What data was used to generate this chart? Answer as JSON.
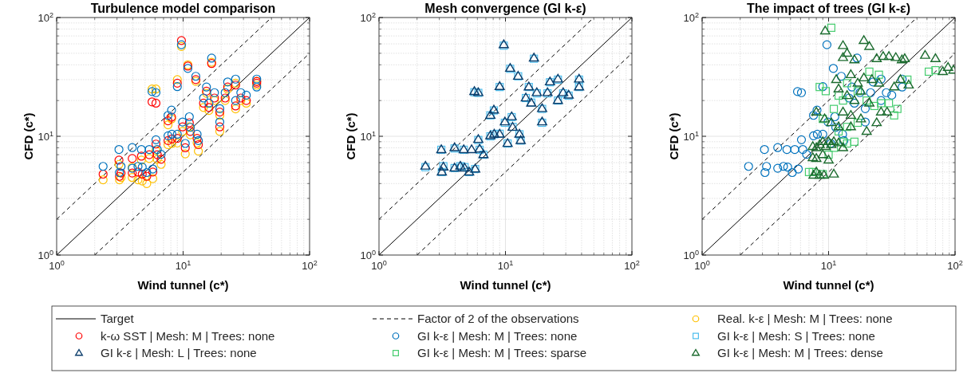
{
  "chart_data": [
    {
      "type": "scatter",
      "title": "Turbulence model comparison",
      "xlabel": "Wind tunnel (c*)",
      "ylabel": "CFD (c*)",
      "log": "xy",
      "grid": true,
      "legend": "bottom",
      "xlim": [
        1,
        100
      ],
      "ylim": [
        1,
        100
      ],
      "xticks": [
        {
          "value": 1,
          "label": "10$^{0}$"
        },
        {
          "value": 10,
          "label": "10$^{1}$"
        },
        {
          "value": 100,
          "label": "10$^{2}$"
        }
      ],
      "yticks": [
        {
          "value": 1,
          "label": "10$^{0}$"
        },
        {
          "value": 10,
          "label": "10$^{1}$"
        },
        {
          "value": 100,
          "label": "10$^{2}$"
        }
      ],
      "series": [
        {
          "type": "line",
          "name": "Target",
          "color": "#000000",
          "line_style": "solid",
          "marker": "none",
          "x": [
            1,
            100
          ],
          "values": [
            1,
            100
          ]
        },
        {
          "type": "line",
          "name": "Factor of 2 of the observations",
          "color": "#000000",
          "line_style": "dashed",
          "marker": "none",
          "x": [
            1,
            50
          ],
          "values": [
            2,
            100
          ]
        },
        {
          "type": "line",
          "color": "#000000",
          "line_style": "dashed",
          "marker": "none",
          "x": [
            2,
            100
          ],
          "values": [
            1,
            50
          ]
        },
        {
          "name": "Real. k-ε | Mesh: M | Trees: none",
          "color": "#ffc000",
          "marker": "circle",
          "x": [
            2.33,
            3.11,
            3.14,
            3.23,
            3.96,
            3.96,
            4.4,
            4.75,
            4.68,
            5.4,
            5.16,
            5.76,
            6.1,
            6.25,
            5.68,
            6.1,
            6.7,
            7.6,
            8.1,
            7.6,
            8.15,
            9.0,
            9.7,
            9.0,
            10.9,
            12.6,
            16.8,
            9.9,
            11.4,
            12.9,
            14.5,
            16,
            17.7,
            19.5,
            22.5,
            26,
            28.6,
            31.6,
            38.2,
            38.2,
            19.5,
            13.2,
            10.4,
            11.2,
            15.3,
            21.5,
            26
          ],
          "values": [
            4.3,
            5.8,
            4.3,
            4.5,
            5.5,
            4.5,
            4.3,
            4.2,
            6.3,
            6.5,
            4.0,
            4.4,
            7.6,
            6.4,
            25,
            25,
            5.8,
            12.5,
            14,
            8.5,
            8.7,
            8.8,
            57,
            30,
            40,
            29,
            42,
            11,
            10.3,
            8.8,
            17.5,
            16.5,
            20,
            15,
            25,
            28,
            20,
            19,
            27,
            29,
            11,
            7.5,
            7.1,
            12,
            23,
            20,
            17
          ]
        },
        {
          "name": "k-ω SST | Mesh: M | Trees: none",
          "color": "#ff0000",
          "marker": "circle",
          "x": [
            2.33,
            3.11,
            3.14,
            3.23,
            3.96,
            3.96,
            4.4,
            4.75,
            4.68,
            5.4,
            5.16,
            5.76,
            6.1,
            6.25,
            5.68,
            6.1,
            6.7,
            7.6,
            8.1,
            7.6,
            8.15,
            9.0,
            9.7,
            9.0,
            10.9,
            12.6,
            16.8,
            9.9,
            11.4,
            12.9,
            14.5,
            16,
            17.7,
            19.5,
            22.5,
            26,
            28.6,
            31.6,
            38.2,
            38.2,
            19.5,
            13.2,
            10.4,
            11.2,
            15.3,
            21.5,
            26
          ],
          "values": [
            4.8,
            6.3,
            4.6,
            4.9,
            6.5,
            4.9,
            5.0,
            4.8,
            6.8,
            7.0,
            4.6,
            5.0,
            8.6,
            7.0,
            19.5,
            19,
            6.4,
            13.5,
            14.5,
            9.2,
            9.5,
            9.6,
            64,
            28,
            39,
            30,
            41,
            12,
            11,
            9.6,
            19,
            17.5,
            21,
            16,
            26,
            27,
            21,
            20,
            28,
            29,
            12,
            8.5,
            8,
            13,
            24,
            21,
            18
          ]
        },
        {
          "name": "GI k-ε | Mesh: M | Trees: none",
          "color": "#0072bd",
          "marker": "circle",
          "x": [
            2.33,
            3.11,
            3.14,
            3.23,
            3.96,
            3.96,
            4.4,
            4.75,
            4.68,
            5.4,
            5.16,
            5.76,
            6.1,
            6.25,
            5.68,
            6.1,
            6.7,
            7.6,
            8.1,
            7.6,
            8.15,
            9.0,
            9.7,
            9.0,
            10.9,
            12.6,
            16.8,
            9.9,
            11.4,
            12.9,
            14.5,
            16,
            17.7,
            19.5,
            22.5,
            26,
            28.6,
            31.6,
            38.2,
            38.2,
            19.5,
            13.2,
            10.4,
            11.2,
            15.3,
            21.5,
            26
          ],
          "values": [
            5.58,
            7.74,
            4.95,
            5.58,
            8.03,
            5.38,
            5.58,
            5.5,
            7.74,
            7.74,
            4.95,
            5.3,
            9.35,
            7.74,
            23.8,
            23.3,
            7.05,
            15,
            16.6,
            10.1,
            10.4,
            10.4,
            59,
            26.2,
            37.3,
            32,
            45.5,
            13.2,
            11.9,
            10.4,
            21,
            19,
            23.3,
            17.1,
            28.7,
            30.3,
            23.3,
            22.2,
            26,
            30.3,
            13.2,
            9.2,
            8.7,
            14.6,
            26,
            23.3,
            20
          ]
        }
      ]
    },
    {
      "type": "scatter",
      "title": "Mesh convergence (GI k-ε)",
      "xlabel": "Wind tunnel (c*)",
      "ylabel": "CFD (c*)",
      "log": "xy",
      "grid": true,
      "legend": "bottom",
      "xlim": [
        1,
        100
      ],
      "ylim": [
        1,
        100
      ],
      "xticks": [
        {
          "value": 1,
          "label": "10$^{0}$"
        },
        {
          "value": 10,
          "label": "10$^{1}$"
        },
        {
          "value": 100,
          "label": "10$^{2}$"
        }
      ],
      "yticks": [
        {
          "value": 1,
          "label": "10$^{0}$"
        },
        {
          "value": 10,
          "label": "10$^{1}$"
        },
        {
          "value": 100,
          "label": "10$^{2}$"
        }
      ],
      "series": [
        {
          "type": "line",
          "color": "#000000",
          "line_style": "solid",
          "marker": "none",
          "x": [
            1,
            100
          ],
          "values": [
            1,
            100
          ]
        },
        {
          "type": "line",
          "color": "#000000",
          "line_style": "dashed",
          "marker": "none",
          "x": [
            1,
            50
          ],
          "values": [
            2,
            100
          ]
        },
        {
          "type": "line",
          "color": "#000000",
          "line_style": "dashed",
          "marker": "none",
          "x": [
            2,
            100
          ],
          "values": [
            1,
            50
          ]
        },
        {
          "name": "GI k-ε | Mesh: S | Trees: none",
          "color": "#4dbeee",
          "marker": "square",
          "x": [
            2.33,
            3.11,
            3.14,
            3.23,
            3.96,
            3.96,
            4.4,
            4.75,
            4.68,
            5.16,
            5.76,
            6.1,
            6.25,
            5.68,
            6.1,
            6.7,
            7.6,
            8.1,
            7.6,
            8.15,
            9.0,
            9.7,
            9.0,
            10.9,
            12.6,
            16.8,
            9.9,
            11.4,
            12.9,
            14.5,
            16,
            17.7,
            19.5,
            22.5,
            26,
            28.6,
            31.6,
            38.2,
            38.2,
            19.5,
            13.2,
            10.4,
            11.2,
            15.3,
            21.5,
            26
          ],
          "values": [
            5.5,
            7.7,
            5.0,
            5.6,
            7.9,
            5.4,
            5.6,
            5.5,
            7.7,
            5.0,
            5.3,
            9.3,
            7.7,
            23.5,
            23.2,
            7.0,
            15,
            16.5,
            10,
            10.4,
            10.5,
            58,
            26,
            37,
            32,
            45,
            13,
            12,
            10.4,
            21,
            19.2,
            23,
            17,
            28.5,
            30,
            23,
            22,
            26,
            30,
            13,
            9.2,
            8.7,
            14.5,
            26,
            23,
            20
          ]
        },
        {
          "name": "GI k-ε | Mesh: L | Trees: none",
          "color": "#0b3d6b",
          "marker": "triangle",
          "x": [
            2.33,
            3.11,
            3.14,
            3.23,
            3.96,
            3.96,
            4.4,
            4.75,
            4.68,
            5.4,
            5.16,
            5.76,
            6.1,
            6.25,
            5.68,
            6.1,
            6.7,
            7.6,
            8.1,
            7.6,
            8.15,
            9.0,
            9.7,
            9.0,
            10.9,
            12.6,
            16.8,
            9.9,
            11.4,
            12.9,
            14.5,
            16,
            17.7,
            19.5,
            22.5,
            26,
            28.6,
            31.6,
            38.2,
            38.2,
            19.5,
            13.2,
            10.4,
            11.2,
            15.3,
            21.5,
            26
          ],
          "values": [
            5.6,
            7.7,
            5.0,
            5.5,
            8.0,
            5.4,
            5.6,
            5.4,
            7.7,
            7.7,
            5.0,
            5.3,
            9.4,
            7.8,
            23.8,
            23.3,
            7.0,
            15,
            16.6,
            10.1,
            10.4,
            10.4,
            59,
            26.2,
            37.3,
            32,
            45.5,
            13.2,
            11.9,
            10.4,
            21,
            19,
            23.3,
            17.1,
            28.7,
            30.3,
            23.3,
            22.2,
            26,
            30.3,
            13.2,
            9.2,
            8.7,
            14.6,
            26,
            23.3,
            20
          ]
        }
      ]
    },
    {
      "type": "scatter",
      "title": "The impact of trees (GI k-ε)",
      "xlabel": "Wind tunnel (c*)",
      "ylabel": "CFD (c*)",
      "log": "xy",
      "grid": true,
      "legend": "bottom",
      "xlim": [
        1,
        100
      ],
      "ylim": [
        1,
        100
      ],
      "xticks": [
        {
          "value": 1,
          "label": "10$^{0}$"
        },
        {
          "value": 10,
          "label": "10$^{1}$"
        },
        {
          "value": 100,
          "label": "10$^{2}$"
        }
      ],
      "yticks": [
        {
          "value": 1,
          "label": "10$^{0}$"
        },
        {
          "value": 10,
          "label": "10$^{1}$"
        },
        {
          "value": 100,
          "label": "10$^{2}$"
        }
      ],
      "series": [
        {
          "type": "line",
          "color": "#000000",
          "line_style": "solid",
          "marker": "none",
          "x": [
            1,
            100
          ],
          "values": [
            1,
            100
          ]
        },
        {
          "type": "line",
          "color": "#000000",
          "line_style": "dashed",
          "marker": "none",
          "x": [
            1,
            50
          ],
          "values": [
            2,
            100
          ]
        },
        {
          "type": "line",
          "color": "#000000",
          "line_style": "dashed",
          "marker": "none",
          "x": [
            2,
            100
          ],
          "values": [
            1,
            50
          ]
        },
        {
          "color": "#0072bd",
          "marker": "circle",
          "x": [
            2.33,
            3.11,
            3.14,
            3.23,
            3.96,
            3.96,
            4.4,
            4.75,
            4.68,
            5.4,
            5.16,
            5.76,
            6.1,
            6.25,
            5.68,
            6.1,
            6.7,
            7.6,
            8.1,
            7.6,
            8.15,
            9.0,
            9.7,
            9.0,
            10.9,
            12.6,
            16.8,
            9.9,
            11.4,
            12.9,
            14.5,
            16,
            17.7,
            19.5,
            22.5,
            26,
            28.6,
            31.6,
            38.2,
            38.2,
            19.5,
            13.2,
            10.4,
            11.2,
            15.3,
            21.5,
            26
          ],
          "values": [
            5.58,
            7.74,
            4.95,
            5.58,
            8.03,
            5.38,
            5.58,
            5.5,
            7.74,
            7.74,
            4.95,
            5.3,
            9.35,
            7.74,
            23.8,
            23.3,
            7.05,
            15,
            16.6,
            10.1,
            10.4,
            10.4,
            59,
            26.2,
            37.3,
            32,
            45.5,
            13.2,
            11.9,
            10.4,
            21,
            19,
            23.3,
            17.1,
            28.7,
            30.3,
            23.3,
            22.2,
            26,
            30.3,
            13.2,
            9.2,
            8.7,
            14.6,
            26,
            23.3,
            20
          ]
        },
        {
          "name": "GI k-ε | Mesh: M | Trees: sparse",
          "color": "#45cc6e",
          "marker": "square",
          "x": [
            10.5,
            7.5,
            7,
            9,
            10,
            11,
            13,
            14,
            16,
            12,
            14,
            17,
            9,
            11,
            13,
            8.5,
            9.5,
            12,
            14,
            17,
            20,
            23,
            26,
            30,
            35,
            21,
            25,
            42,
            62,
            70,
            33
          ],
          "values": [
            82,
            5,
            5,
            4.8,
            7,
            8,
            9,
            8.7,
            9,
            11,
            12,
            13,
            14,
            17,
            20,
            26,
            24,
            22,
            28,
            24,
            20,
            18,
            19,
            19,
            17,
            35,
            33,
            30,
            35,
            36,
            15
          ]
        },
        {
          "name": "GI k-ε | Mesh: M | Trees: dense",
          "color": "#1b6b2e",
          "marker": "triangle",
          "x": [
            9.4,
            13,
            19,
            21,
            13,
            14,
            16,
            24,
            27,
            30,
            34,
            38,
            40,
            58,
            70,
            88,
            97,
            80,
            11.5,
            15,
            17,
            19,
            22,
            25,
            33,
            37,
            43,
            12,
            14,
            16,
            18,
            21,
            13,
            15,
            18,
            8,
            9.3,
            10.5,
            12,
            15,
            20,
            24,
            26,
            29,
            9,
            10,
            11,
            12,
            9.5,
            8,
            8.5,
            7.5,
            10.5,
            13,
            9,
            8,
            7.5,
            8,
            8.5,
            9.2,
            7.6,
            11,
            10
          ],
          "values": [
            77,
            46,
            64,
            57,
            58,
            50,
            44,
            45,
            47,
            47,
            46,
            44,
            45,
            48,
            45,
            38,
            36,
            35,
            30,
            33,
            28,
            31,
            30,
            28,
            26,
            30,
            27,
            25,
            22,
            20,
            24,
            19,
            16,
            15,
            14,
            16,
            14,
            13,
            12,
            12,
            11,
            13,
            16,
            16,
            9,
            9,
            9,
            8.8,
            8.2,
            8,
            8.5,
            8.2,
            8.5,
            8,
            7,
            6.5,
            6.6,
            5,
            4.7,
            4.7,
            4.7,
            4.8,
            6.3
          ]
        }
      ]
    }
  ]
}
